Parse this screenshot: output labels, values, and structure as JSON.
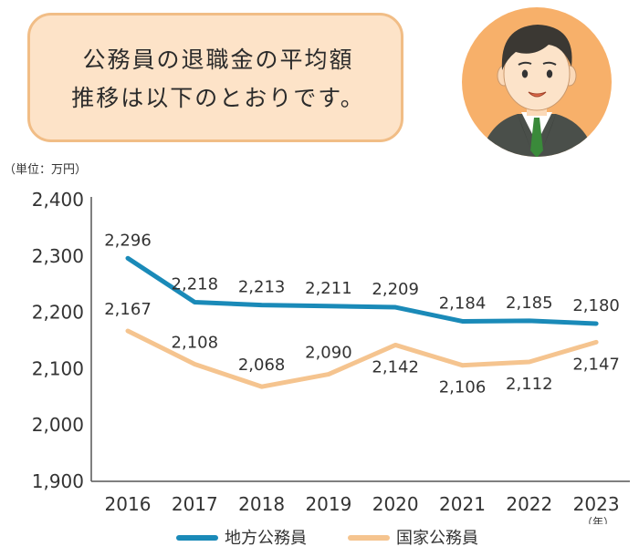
{
  "speech_bubble": {
    "line1": "公務員の退職金の平均額",
    "line2": "推移は以下のとおりです。"
  },
  "colors": {
    "bubble_fill": "#fde3c8",
    "bubble_border": "#f1bd86",
    "series_local": "#1a8ab8",
    "series_national": "#f5c48f",
    "axis": "#555555"
  },
  "icons": [
    "person-avatar-icon"
  ],
  "chart_data": {
    "type": "line",
    "unit_label": "（単位：万円）",
    "x_unit_label": "（年）",
    "categories": [
      "2016",
      "2017",
      "2018",
      "2019",
      "2020",
      "2021",
      "2022",
      "2023"
    ],
    "ylim": [
      1900,
      2400
    ],
    "yticks": [
      1900,
      2000,
      2100,
      2200,
      2300,
      2400
    ],
    "ytick_labels": [
      "1,900",
      "2,000",
      "2,100",
      "2,200",
      "2,300",
      "2,400"
    ],
    "grid": false,
    "legend_position": "bottom",
    "series": [
      {
        "name": "地方公務員",
        "values": [
          2296,
          2218,
          2213,
          2211,
          2209,
          2184,
          2185,
          2180
        ],
        "labels": [
          "2,296",
          "2,218",
          "2,213",
          "2,211",
          "2,209",
          "2,184",
          "2,185",
          "2,180"
        ],
        "color": "#1a8ab8"
      },
      {
        "name": "国家公務員",
        "values": [
          2167,
          2108,
          2068,
          2090,
          2142,
          2106,
          2112,
          2147
        ],
        "labels": [
          "2,167",
          "2,108",
          "2,068",
          "2,090",
          "2,142",
          "2,106",
          "2,112",
          "2,147"
        ],
        "color": "#f5c48f"
      }
    ]
  }
}
